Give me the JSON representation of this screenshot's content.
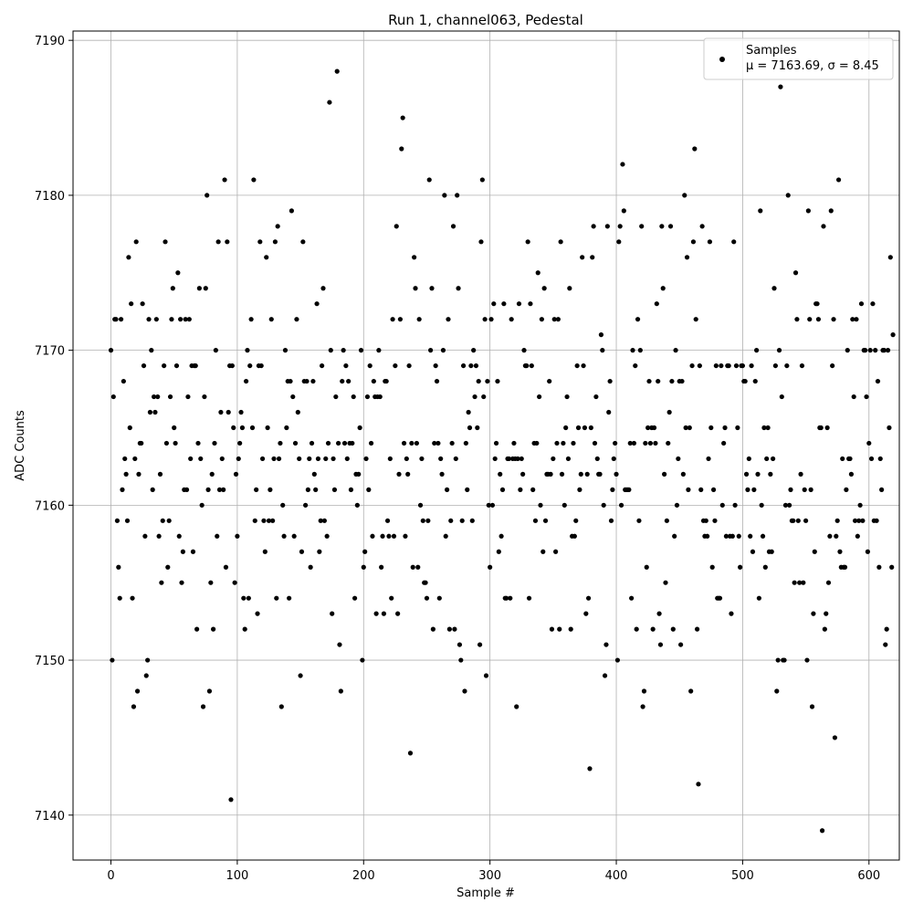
{
  "chart_data": {
    "type": "scatter",
    "title": "Run 1, channel063, Pedestal",
    "xlabel": "Sample #",
    "ylabel": "ADC Counts",
    "xlim": [
      -30,
      624
    ],
    "ylim": [
      7137.1,
      7190.6
    ],
    "xticks": [
      0,
      100,
      200,
      300,
      400,
      500,
      600
    ],
    "yticks": [
      7140,
      7150,
      7160,
      7170,
      7180,
      7190
    ],
    "grid": true,
    "legend_position": "top-right",
    "series": [
      {
        "name": "Samples",
        "color": "#000000",
        "label_line2": "μ = 7163.69, σ = 8.45",
        "y": [
          7170,
          7150,
          7167,
          7172,
          7172,
          7159,
          7156,
          7154,
          7172,
          7161,
          7168,
          7163,
          7162,
          7159,
          7176,
          7165,
          7173,
          7154,
          7147,
          7163,
          7177,
          7148,
          7162,
          7164,
          7164,
          7173,
          7169,
          7158,
          7149,
          7150,
          7172,
          7166,
          7170,
          7161,
          7167,
          7166,
          7172,
          7167,
          7158,
          7162,
          7155,
          7159,
          7169,
          7177,
          7164,
          7156,
          7159,
          7167,
          7172,
          7174,
          7165,
          7164,
          7169,
          7175,
          7158,
          7172,
          7155,
          7157,
          7161,
          7172,
          7161,
          7167,
          7172,
          7163,
          7169,
          7157,
          7169,
          7169,
          7152,
          7164,
          7174,
          7163,
          7160,
          7147,
          7167,
          7174,
          7180,
          7161,
          7148,
          7155,
          7162,
          7152,
          7164,
          7170,
          7158,
          7177,
          7161,
          7166,
          7163,
          7161,
          7181,
          7156,
          7177,
          7166,
          7169,
          7141,
          7169,
          7165,
          7155,
          7162,
          7158,
          7163,
          7164,
          7166,
          7165,
          7154,
          7152,
          7168,
          7170,
          7154,
          7169,
          7172,
          7165,
          7181,
          7159,
          7161,
          7153,
          7169,
          7177,
          7169,
          7163,
          7159,
          7157,
          7176,
          7165,
          7159,
          7161,
          7172,
          7159,
          7163,
          7177,
          7154,
          7178,
          7163,
          7164,
          7147,
          7160,
          7158,
          7170,
          7165,
          7168,
          7154,
          7168,
          7179,
          7167,
          7158,
          7164,
          7172,
          7166,
          7163,
          7149,
          7157,
          7177,
          7168,
          7160,
          7168,
          7161,
          7163,
          7156,
          7164,
          7168,
          7162,
          7161,
          7173,
          7163,
          7157,
          7159,
          7169,
          7174,
          7159,
          7163,
          7158,
          7164,
          7186,
          7170,
          7153,
          7163,
          7161,
          7167,
          7188,
          7164,
          7151,
          7148,
          7168,
          7170,
          7164,
          7169,
          7163,
          7168,
          7164,
          7161,
          7164,
          7167,
          7154,
          7162,
          7160,
          7162,
          7165,
          7170,
          7150,
          7156,
          7157,
          7163,
          7167,
          7161,
          7169,
          7164,
          7158,
          7168,
          7167,
          7153,
          7167,
          7170,
          7167,
          7156,
          7158,
          7153,
          7168,
          7168,
          7159,
          7158,
          7163,
          7154,
          7172,
          7158,
          7169,
          7178,
          7153,
          7162,
          7172,
          7183,
          7185,
          7164,
          7158,
          7163,
          7162,
          7169,
          7144,
          7164,
          7156,
          7176,
          7174,
          7164,
          7156,
          7172,
          7160,
          7163,
          7159,
          7155,
          7155,
          7154,
          7159,
          7181,
          7170,
          7174,
          7152,
          7164,
          7169,
          7168,
          7164,
          7154,
          7163,
          7162,
          7170,
          7180,
          7158,
          7161,
          7172,
          7152,
          7159,
          7164,
          7178,
          7152,
          7163,
          7180,
          7174,
          7151,
          7150,
          7159,
          7169,
          7148,
          7164,
          7161,
          7166,
          7165,
          7169,
          7159,
          7170,
          7167,
          7169,
          7165,
          7168,
          7151,
          7177,
          7181,
          7167,
          7172,
          7149,
          7168,
          7160,
          7156,
          7172,
          7160,
          7173,
          7163,
          7164,
          7168,
          7157,
          7162,
          7158,
          7161,
          7173,
          7154,
          7154,
          7163,
          7163,
          7154,
          7172,
          7163,
          7164,
          7163,
          7147,
          7163,
          7173,
          7161,
          7163,
          7162,
          7170,
          7169,
          7169,
          7177,
          7154,
          7173,
          7169,
          7161,
          7164,
          7159,
          7164,
          7175,
          7167,
          7160,
          7172,
          7157,
          7174,
          7159,
          7162,
          7162,
          7168,
          7162,
          7152,
          7163,
          7172,
          7157,
          7164,
          7172,
          7152,
          7177,
          7162,
          7164,
          7160,
          7165,
          7167,
          7163,
          7174,
          7152,
          7158,
          7164,
          7158,
          7159,
          7169,
          7165,
          7161,
          7162,
          7176,
          7169,
          7165,
          7153,
          7162,
          7154,
          7143,
          7165,
          7176,
          7178,
          7164,
          7167,
          7163,
          7162,
          7162,
          7171,
          7170,
          7160,
          7149,
          7151,
          7178,
          7166,
          7168,
          7159,
          7161,
          7163,
          7164,
          7162,
          7150,
          7177,
          7178,
          7160,
          7182,
          7179,
          7161,
          7161,
          7161,
          7161,
          7164,
          7154,
          7170,
          7164,
          7169,
          7152,
          7172,
          7159,
          7170,
          7178,
          7147,
          7148,
          7164,
          7156,
          7165,
          7168,
          7164,
          7165,
          7152,
          7165,
          7164,
          7173,
          7168,
          7153,
          7151,
          7178,
          7174,
          7162,
          7155,
          7159,
          7164,
          7166,
          7178,
          7168,
          7152,
          7158,
          7170,
          7160,
          7163,
          7168,
          7151,
          7168,
          7162,
          7180,
          7165,
          7176,
          7161,
          7165,
          7148,
          7169,
          7177,
          7183,
          7172,
          7152,
          7142,
          7169,
          7161,
          7178,
          7159,
          7158,
          7159,
          7158,
          7163,
          7177,
          7165,
          7156,
          7161,
          7159,
          7169,
          7154,
          7154,
          7154,
          7169,
          7160,
          7164,
          7165,
          7158,
          7169,
          7169,
          7158,
          7153,
          7158,
          7177,
          7160,
          7169,
          7165,
          7158,
          7156,
          7169,
          7169,
          7168,
          7168,
          7162,
          7161,
          7163,
          7158,
          7169,
          7157,
          7161,
          7168,
          7170,
          7162,
          7154,
          7179,
          7160,
          7158,
          7165,
          7156,
          7163,
          7165,
          7157,
          7162,
          7157,
          7163,
          7174,
          7169,
          7148,
          7150,
          7170,
          7187,
          7167,
          7150,
          7150,
          7160,
          7169,
          7180,
          7160,
          7161,
          7159,
          7159,
          7155,
          7175,
          7172,
          7159,
          7155,
          7162,
          7169,
          7155,
          7161,
          7159,
          7150,
          7179,
          7172,
          7161,
          7147,
          7153,
          7157,
          7173,
          7173,
          7172,
          7165,
          7165,
          7139,
          7178,
          7152,
          7153,
          7165,
          7155,
          7158,
          7179,
          7169,
          7172,
          7145,
          7158,
          7159,
          7181,
          7157,
          7156,
          7163,
          7156,
          7156,
          7161,
          7170,
          7163,
          7163,
          7162,
          7172,
          7167,
          7159,
          7172,
          7158,
          7159,
          7160,
          7173,
          7159,
          7170,
          7170,
          7167,
          7157,
          7164,
          7170,
          7163,
          7173,
          7159,
          7170,
          7159,
          7168,
          7156,
          7163,
          7161,
          7170,
          7170,
          7151,
          7152,
          7170,
          7165,
          7176,
          7156,
          7171
        ]
      }
    ]
  }
}
